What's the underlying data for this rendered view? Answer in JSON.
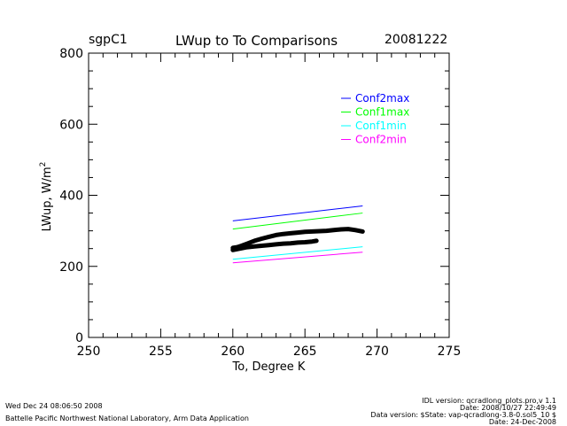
{
  "header": {
    "site": "sgpC1",
    "title": "LWup to To Comparisons",
    "date": "20081222"
  },
  "chart_data": {
    "type": "line",
    "title": "LWup to To Comparisons",
    "xlabel": "To, Degree K",
    "ylabel": "LWup, W/m",
    "ylabel_sup": "2",
    "xlim": [
      250,
      275
    ],
    "ylim": [
      0,
      800
    ],
    "xticks": [
      "250",
      "255",
      "260",
      "265",
      "270",
      "275"
    ],
    "yticks": [
      "0",
      "200",
      "400",
      "600",
      "800"
    ],
    "grid": false,
    "legend_position": "top-right",
    "series": [
      {
        "name": "Conf2max",
        "color": "#0000ff",
        "x": [
          260,
          269
        ],
        "y": [
          328,
          370
        ]
      },
      {
        "name": "Conf1max",
        "color": "#00ff00",
        "x": [
          260,
          269
        ],
        "y": [
          305,
          350
        ]
      },
      {
        "name": "Conf1min",
        "color": "#00ffff",
        "x": [
          260,
          269
        ],
        "y": [
          220,
          255
        ]
      },
      {
        "name": "Conf2min",
        "color": "#ff00ff",
        "x": [
          260,
          269
        ],
        "y": [
          210,
          240
        ]
      }
    ],
    "observations": {
      "color": "#000000",
      "upper": {
        "x": [
          260.0,
          260.3,
          260.6,
          261.0,
          261.5,
          262.0,
          262.5,
          263.0,
          263.5,
          264.0,
          264.5,
          265.0,
          265.5,
          266.0,
          266.5,
          267.0,
          267.5,
          268.0,
          268.5,
          269.0
        ],
        "y": [
          252,
          254,
          258,
          264,
          272,
          278,
          283,
          288,
          291,
          293,
          295,
          297,
          298,
          299,
          300,
          302,
          304,
          305,
          302,
          298
        ]
      },
      "lower": {
        "x": [
          260.0,
          260.5,
          261.0,
          261.5,
          262.0,
          262.5,
          263.0,
          263.5,
          264.0,
          264.5,
          265.0,
          265.5,
          265.8
        ],
        "y": [
          246,
          250,
          254,
          256,
          258,
          260,
          262,
          264,
          265,
          267,
          268,
          270,
          272
        ]
      }
    }
  },
  "footer": {
    "left_line1": "Wed Dec 24 08:06:50 2008",
    "left_line2": "Battelle Pacific Northwest National Laboratory, Arm Data Application",
    "right_line1": "IDL version: qcradlong_plots.pro,v 1.1",
    "right_line2": "Date: 2008/10/27 22:49:49",
    "right_line3": "Data version: $State: vap-qcradlong-3.8-0.sol5_10 $",
    "right_line4": "Date: 24-Dec-2008"
  }
}
